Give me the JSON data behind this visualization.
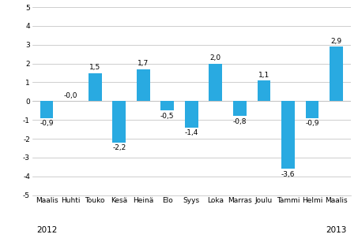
{
  "categories": [
    "Maalis",
    "Huhti",
    "Touko",
    "Kesä",
    "Heinä",
    "Elo",
    "Syys",
    "Loka",
    "Marras",
    "Joulu",
    "Tammi",
    "Helmi",
    "Maalis"
  ],
  "values": [
    -0.9,
    -0.0,
    1.5,
    -2.2,
    1.7,
    -0.5,
    -1.4,
    2.0,
    -0.8,
    1.1,
    -3.6,
    -0.9,
    2.9
  ],
  "labels": [
    "-0,9",
    "-0,0",
    "1,5",
    "-2,2",
    "1,7",
    "-0,5",
    "-1,4",
    "2,0",
    "-0,8",
    "1,1",
    "-3,6",
    "-0,9",
    "2,9"
  ],
  "bar_color": "#29aae1",
  "ylim": [
    -5,
    5
  ],
  "yticks": [
    -5,
    -4,
    -3,
    -2,
    -1,
    0,
    1,
    2,
    3,
    4,
    5
  ],
  "background_color": "#ffffff",
  "grid_color": "#bbbbbb",
  "label_fontsize": 6.5,
  "tick_fontsize": 6.5,
  "year_fontsize": 7.5,
  "bar_width": 0.55
}
